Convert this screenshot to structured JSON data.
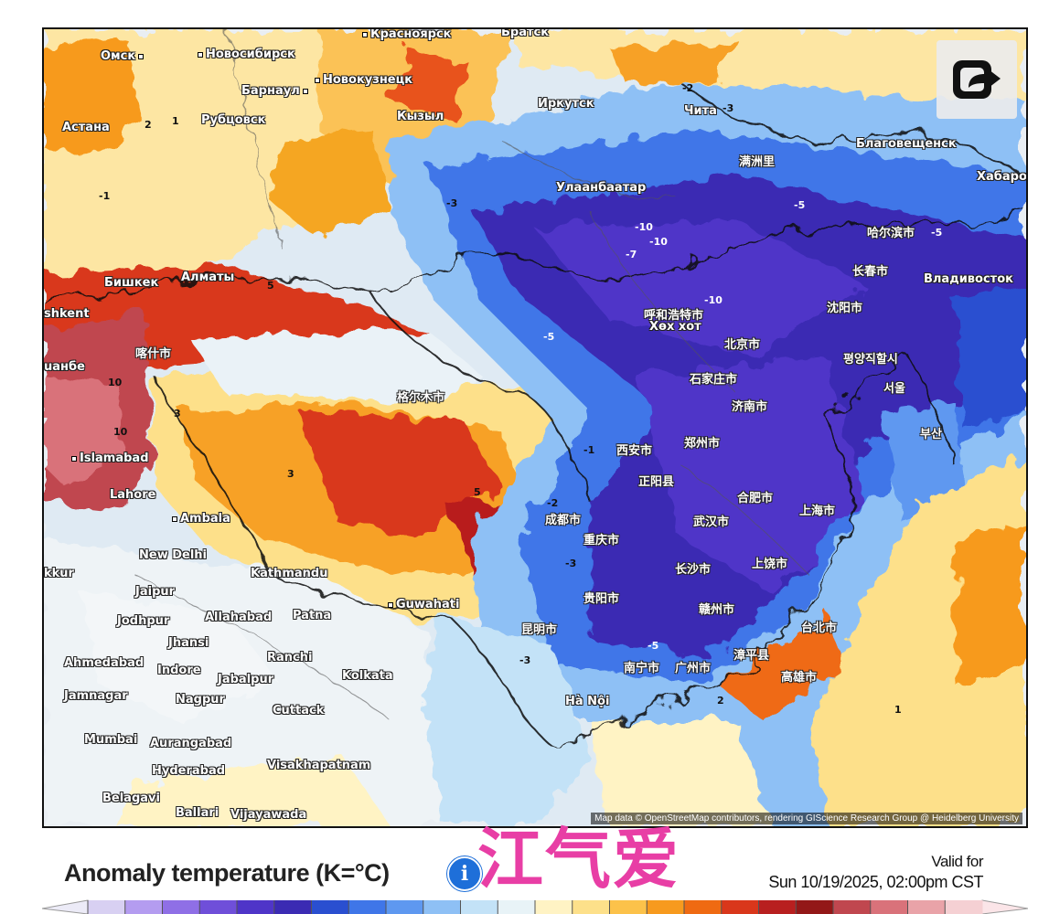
{
  "map": {
    "attribution": "Map data © OpenStreetMap contributors, rendering GIScience Research Group @ Heidelberg University",
    "cities": [
      {
        "name": "Красноярск",
        "pos": "top"
      },
      {
        "name": "Братск"
      },
      {
        "name": "Омск"
      },
      {
        "name": "Новосибирск"
      },
      {
        "name": "Барнаул"
      },
      {
        "name": "Новокузнецк"
      },
      {
        "name": "Рубцовск"
      },
      {
        "name": "Астана"
      },
      {
        "name": "Кызыл"
      },
      {
        "name": "Иркутск"
      },
      {
        "name": "Чита"
      },
      {
        "name": "满洲里"
      },
      {
        "name": "Благовещенск"
      },
      {
        "name": "Хабаро"
      },
      {
        "name": "Улаанбаатар"
      },
      {
        "name": "哈尔滨市"
      },
      {
        "name": "长春市"
      },
      {
        "name": "Владивосток"
      },
      {
        "name": "Бишкек"
      },
      {
        "name": "Алматы"
      },
      {
        "name": "shkent"
      },
      {
        "name": "呼和浩特市"
      },
      {
        "name": "Хөх хот"
      },
      {
        "name": "沈阳市"
      },
      {
        "name": "北京市"
      },
      {
        "name": "평양직할시"
      },
      {
        "name": "uанбе"
      },
      {
        "name": "喀什市"
      },
      {
        "name": "石家庄市"
      },
      {
        "name": "济南市"
      },
      {
        "name": "서울"
      },
      {
        "name": "格尔木市"
      },
      {
        "name": "西安市"
      },
      {
        "name": "郑州市"
      },
      {
        "name": "부산"
      },
      {
        "name": "Islamabad"
      },
      {
        "name": "正阳县"
      },
      {
        "name": "合肥市"
      },
      {
        "name": "Lahore"
      },
      {
        "name": "上海市"
      },
      {
        "name": "成都市"
      },
      {
        "name": "武汉市"
      },
      {
        "name": "Ambala"
      },
      {
        "name": "重庆市"
      },
      {
        "name": "New Delhi"
      },
      {
        "name": "长沙市"
      },
      {
        "name": "上饶市"
      },
      {
        "name": "Kathmandu"
      },
      {
        "name": "Jaipur"
      },
      {
        "name": "贵阳市"
      },
      {
        "name": "Guwahati"
      },
      {
        "name": "昆明市"
      },
      {
        "name": "赣州市"
      },
      {
        "name": "Jodhpur"
      },
      {
        "name": "Allahabad"
      },
      {
        "name": "Patna"
      },
      {
        "name": "台北市"
      },
      {
        "name": "Jhansi"
      },
      {
        "name": "Ahmedabad"
      },
      {
        "name": "Indore"
      },
      {
        "name": "Ranchi"
      },
      {
        "name": "漳平县"
      },
      {
        "name": "Jabalpur"
      },
      {
        "name": "南宁市"
      },
      {
        "name": "广州市"
      },
      {
        "name": "高雄市"
      },
      {
        "name": "Jamnagar"
      },
      {
        "name": "Nagpur"
      },
      {
        "name": "Kolkata"
      },
      {
        "name": "Hà Nội"
      },
      {
        "name": "Cuttack"
      },
      {
        "name": "Mumbai"
      },
      {
        "name": "Aurangabad"
      },
      {
        "name": "Hyderabad"
      },
      {
        "name": "Visakhapatnam"
      },
      {
        "name": "Belagavi"
      },
      {
        "name": "Ballari"
      },
      {
        "name": "Vijayawada"
      },
      {
        "name": "kkur"
      }
    ],
    "contour_labels": [
      "-10",
      "-10",
      "-10",
      "-7",
      "-5",
      "-5",
      "-5",
      "-5",
      "-3",
      "-3",
      "-3",
      "-3",
      "-2",
      "-2",
      "-1",
      "-1",
      "1",
      "1",
      "2",
      "2",
      "3",
      "3",
      "5",
      "5",
      "10",
      "10"
    ]
  },
  "share_icon": "share-arrow-icon",
  "legend": {
    "title": "Anomaly temperature (K=°C)",
    "info_icon": "info-icon",
    "info_glyph": "i",
    "colors": [
      "#d8d0f2",
      "#b49cf0",
      "#8f6fe6",
      "#6f4fd9",
      "#4f35c8",
      "#3b2bb3",
      "#2a4fd0",
      "#3f76e8",
      "#5e98f0",
      "#8ec0f5",
      "#c3e2f7",
      "#e8f3f7",
      "#fff3c4",
      "#fde08a",
      "#fcc24a",
      "#f79a1e",
      "#ef6a12",
      "#d9371b",
      "#b81f1f",
      "#931818",
      "#c0474f",
      "#d9727a",
      "#e9a3a8",
      "#f5d0d3"
    ]
  },
  "watermark": "江气爱",
  "valid": {
    "line1": "Valid for",
    "line2": "Sun 10/19/2025, 02:00pm CST"
  }
}
